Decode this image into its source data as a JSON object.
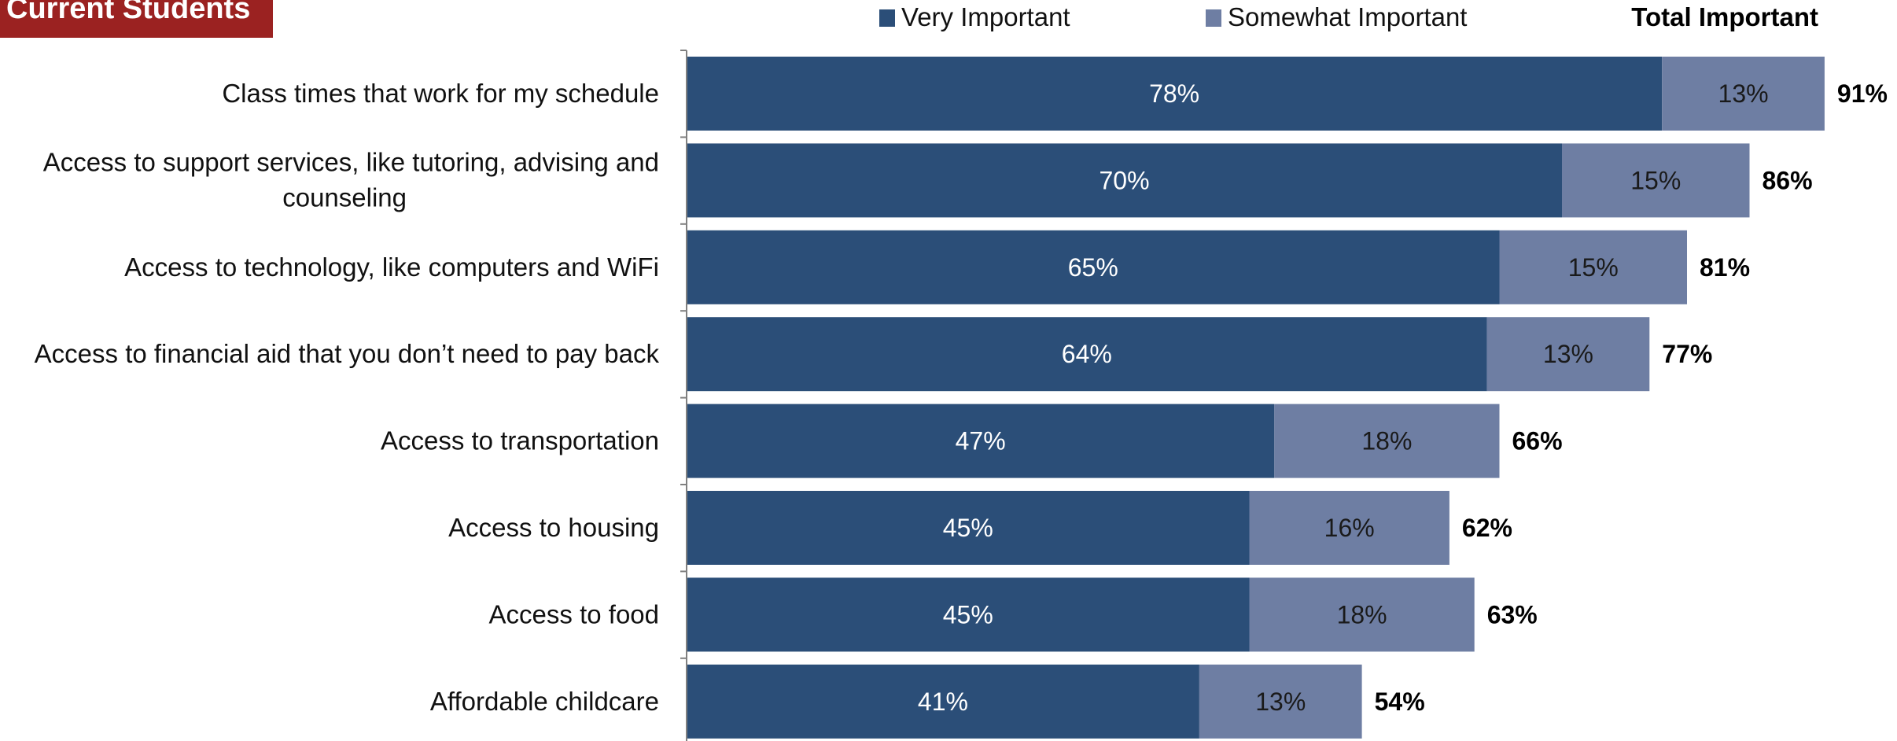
{
  "header": {
    "badge": "Current Students"
  },
  "legend": {
    "items": [
      "Very Important",
      "Somewhat Important"
    ],
    "total_label": "Total Important"
  },
  "colors": {
    "very_important": "#2b4e78",
    "somewhat_important": "#6e7ea3",
    "badge_bg": "#9b2221",
    "badge_text": "#ffffff",
    "bar_label": "#ffffff",
    "category_text": "#111111",
    "total_text": "#000000",
    "axis": "#808080"
  },
  "chart_data": {
    "type": "bar",
    "orientation": "horizontal",
    "stacked": true,
    "categories": [
      "Class times that work for my schedule",
      "Access to support services, like tutoring, advising and counseling",
      "Access to technology, like computers and WiFi",
      "Access to financial aid that you don’t need to pay back",
      "Access to transportation",
      "Access to housing",
      "Access to food",
      "Affordable childcare"
    ],
    "series": [
      {
        "name": "Very Important",
        "values": [
          78,
          70,
          65,
          64,
          47,
          45,
          45,
          41
        ]
      },
      {
        "name": "Somewhat Important",
        "values": [
          13,
          15,
          15,
          13,
          18,
          16,
          18,
          13
        ]
      }
    ],
    "totals": [
      91,
      86,
      81,
      77,
      66,
      62,
      63,
      54
    ],
    "value_format": "percent",
    "xlim": [
      0,
      100
    ],
    "grid": false,
    "legend_position": "top"
  }
}
